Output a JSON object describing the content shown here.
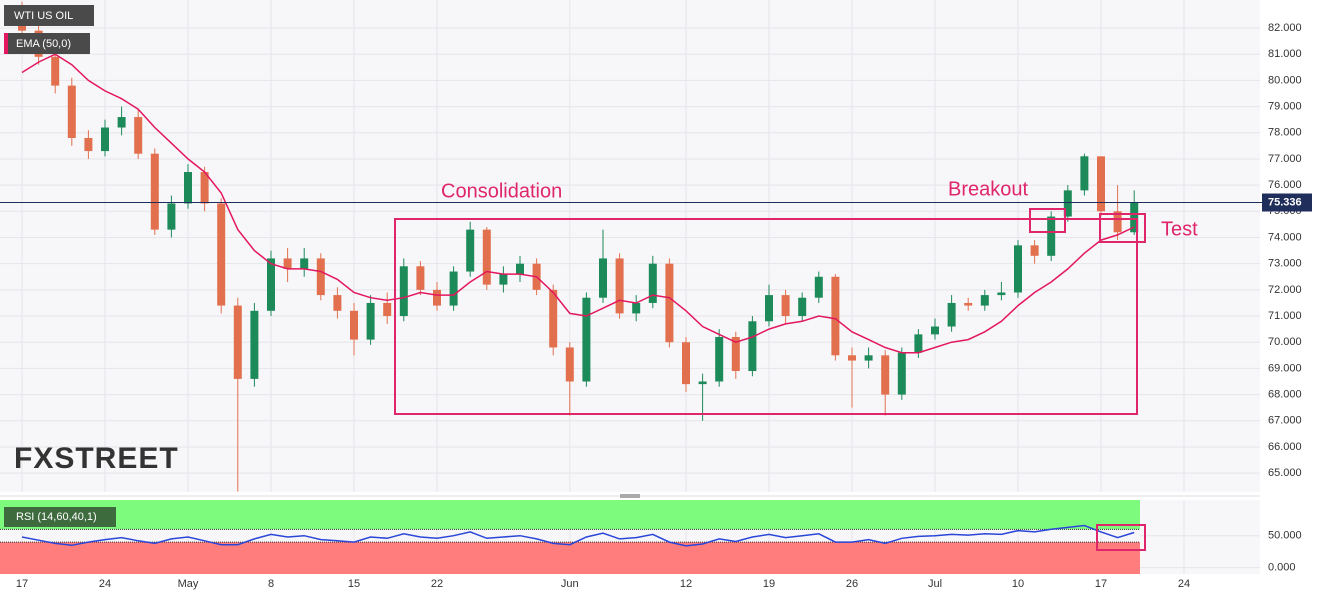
{
  "chart_data": [
    {
      "type": "candlestick",
      "title": "WTI US OIL",
      "up_color": "#1d8a5a",
      "down_color": "#e2704f",
      "categories": [
        "17",
        null,
        null,
        null,
        null,
        "24",
        null,
        null,
        null,
        null,
        "May",
        null,
        null,
        null,
        null,
        "8",
        null,
        null,
        null,
        null,
        "15",
        null,
        null,
        null,
        null,
        "22",
        null,
        null,
        null,
        null,
        null,
        null,
        null,
        "Jun",
        null,
        null,
        null,
        null,
        null,
        null,
        "12",
        null,
        null,
        null,
        null,
        "19",
        null,
        null,
        null,
        null,
        "26",
        null,
        null,
        null,
        null,
        "Jul",
        null,
        null,
        null,
        null,
        "10",
        null,
        null,
        null,
        null,
        "17",
        null,
        null,
        null,
        null,
        "24",
        null,
        null,
        null,
        null,
        null,
        null
      ],
      "open": [
        82.6,
        81.9,
        80.9,
        79.8,
        77.8,
        77.3,
        78.2,
        78.6,
        77.2,
        74.3,
        75.3,
        76.5,
        75.3,
        71.4,
        68.6,
        71.2,
        73.2,
        72.8,
        73.2,
        71.8,
        71.2,
        70.1,
        71.5,
        71.0,
        72.9,
        72.0,
        71.4,
        72.7,
        74.3,
        72.2,
        72.6,
        73.0,
        72.0,
        69.8,
        68.5,
        71.7,
        73.2,
        71.1,
        71.5,
        73.0,
        70.0,
        68.4,
        68.5,
        70.2,
        68.9,
        70.8,
        71.8,
        71.0,
        71.7,
        72.5,
        69.5,
        69.3,
        69.5,
        68.0,
        69.6,
        70.3,
        70.6,
        71.5,
        71.4,
        71.8,
        71.9,
        73.7,
        73.3,
        74.8,
        75.8,
        77.1,
        75.0,
        74.2,
        null,
        null,
        null,
        null,
        null,
        null,
        null,
        null,
        null
      ],
      "high": [
        83.0,
        82.2,
        81.3,
        80.1,
        78.1,
        78.5,
        79.0,
        78.9,
        77.4,
        75.6,
        76.8,
        76.7,
        75.5,
        71.7,
        71.5,
        73.5,
        73.6,
        73.6,
        73.4,
        72.1,
        71.5,
        71.8,
        71.9,
        73.2,
        73.1,
        72.3,
        72.9,
        74.6,
        74.4,
        72.9,
        73.3,
        73.2,
        72.2,
        70.0,
        71.9,
        74.3,
        73.4,
        71.8,
        73.3,
        73.2,
        70.2,
        68.8,
        70.5,
        70.4,
        71.0,
        72.2,
        72.0,
        71.9,
        72.7,
        72.6,
        69.8,
        69.8,
        69.7,
        69.8,
        70.5,
        70.9,
        71.8,
        71.7,
        72.0,
        72.3,
        73.9,
        73.9,
        75.0,
        76.0,
        77.2,
        77.1,
        76.0,
        75.8,
        null,
        null,
        null,
        null,
        null,
        null,
        null,
        null,
        null
      ],
      "low": [
        81.5,
        80.6,
        79.5,
        77.5,
        77.0,
        77.1,
        77.9,
        77.0,
        74.1,
        74.0,
        75.1,
        75.0,
        71.1,
        64.3,
        68.3,
        71.0,
        72.3,
        72.5,
        71.6,
        70.9,
        69.5,
        69.9,
        70.7,
        70.8,
        71.8,
        71.2,
        71.2,
        72.5,
        72.0,
        71.9,
        72.3,
        71.8,
        69.5,
        67.2,
        68.3,
        71.5,
        70.9,
        70.8,
        71.3,
        69.8,
        68.1,
        67.0,
        68.3,
        68.6,
        68.7,
        70.6,
        70.7,
        70.8,
        71.5,
        69.3,
        67.5,
        69.0,
        67.2,
        67.8,
        69.4,
        70.1,
        70.4,
        71.2,
        71.2,
        71.6,
        71.7,
        73.0,
        73.1,
        74.6,
        75.6,
        74.8,
        73.9,
        74.1,
        null,
        null,
        null,
        null,
        null,
        null,
        null,
        null,
        null
      ],
      "close": [
        81.9,
        80.9,
        79.8,
        77.8,
        77.3,
        78.2,
        78.6,
        77.2,
        74.3,
        75.3,
        76.5,
        75.3,
        71.4,
        68.6,
        71.2,
        73.2,
        72.8,
        73.2,
        71.8,
        71.2,
        70.1,
        71.5,
        71.0,
        72.9,
        72.0,
        71.4,
        72.7,
        74.3,
        72.2,
        72.6,
        73.0,
        72.0,
        69.8,
        68.5,
        71.7,
        73.2,
        71.1,
        71.5,
        73.0,
        70.0,
        68.4,
        68.5,
        70.2,
        68.9,
        70.8,
        71.8,
        71.0,
        71.7,
        72.5,
        69.5,
        69.3,
        69.5,
        68.0,
        69.6,
        70.3,
        70.6,
        71.5,
        71.4,
        71.8,
        71.9,
        73.7,
        73.3,
        74.8,
        75.8,
        77.1,
        75.0,
        74.2,
        75.34,
        null,
        null,
        null,
        null,
        null,
        null,
        null,
        null,
        null
      ],
      "ema": {
        "name": "EMA (50,0)",
        "color": "#e3175f",
        "values": [
          80.3,
          80.7,
          81.0,
          80.6,
          80.0,
          79.6,
          79.3,
          78.9,
          78.2,
          77.6,
          77.0,
          76.5,
          75.7,
          74.3,
          73.5,
          73.0,
          72.8,
          72.8,
          72.7,
          72.4,
          71.9,
          71.7,
          71.6,
          71.7,
          71.9,
          71.8,
          71.8,
          72.3,
          72.7,
          72.6,
          72.6,
          72.5,
          71.9,
          71.1,
          71.0,
          71.3,
          71.6,
          71.5,
          71.8,
          71.7,
          71.2,
          70.6,
          70.3,
          70.0,
          70.2,
          70.5,
          70.7,
          70.8,
          71.0,
          70.9,
          70.4,
          70.1,
          69.8,
          69.6,
          69.6,
          69.8,
          70.0,
          70.1,
          70.4,
          70.8,
          71.4,
          71.9,
          72.3,
          72.8,
          73.4,
          73.9,
          74.1,
          74.4,
          null,
          null,
          null,
          null,
          null,
          null,
          null,
          null,
          null
        ]
      },
      "last_price": {
        "value": 75.336,
        "label": "75.336"
      },
      "annotations": [
        "Consolidation",
        "Breakout",
        "Test"
      ],
      "logo": "FXSTREET",
      "ylim": [
        64.28,
        83.07
      ],
      "yticks": [
        {
          "value": 65,
          "label": "65.000"
        },
        {
          "value": 66,
          "label": "66.000"
        },
        {
          "value": 67,
          "label": "67.000"
        },
        {
          "value": 68,
          "label": "68.000"
        },
        {
          "value": 69,
          "label": "69.000"
        },
        {
          "value": 70,
          "label": "70.000"
        },
        {
          "value": 71,
          "label": "71.000"
        },
        {
          "value": 72,
          "label": "72.000"
        },
        {
          "value": 73,
          "label": "73.000"
        },
        {
          "value": 74,
          "label": "74.000"
        },
        {
          "value": 75,
          "label": "75.000"
        },
        {
          "value": 76,
          "label": "76.000"
        },
        {
          "value": 77,
          "label": "77.000"
        },
        {
          "value": 78,
          "label": "78.000"
        },
        {
          "value": 79,
          "label": "79.000"
        },
        {
          "value": 80,
          "label": "80.000"
        },
        {
          "value": 81,
          "label": "81.000"
        },
        {
          "value": 82,
          "label": "82.000"
        }
      ],
      "grid": true
    },
    {
      "type": "line",
      "title": "RSI (14,60,40,1)",
      "color": "#2946d8",
      "overbought": 60,
      "oversold": 40,
      "overbought_color": "#7dfb7d",
      "oversold_color": "#ff7d7d",
      "values": [
        48,
        43,
        38,
        35,
        40,
        44,
        47,
        42,
        38,
        45,
        48,
        42,
        36,
        36,
        45,
        52,
        48,
        50,
        44,
        42,
        40,
        48,
        46,
        53,
        48,
        46,
        50,
        56,
        46,
        48,
        50,
        45,
        38,
        36,
        48,
        54,
        45,
        47,
        52,
        40,
        34,
        37,
        45,
        41,
        48,
        52,
        47,
        50,
        53,
        40,
        40,
        44,
        38,
        46,
        49,
        50,
        52,
        51,
        53,
        52,
        58,
        56,
        60,
        63,
        66,
        56,
        47,
        55,
        null,
        null,
        null,
        null,
        null,
        null,
        null,
        null,
        null
      ],
      "ylim": [
        -10,
        106
      ],
      "yticks": [
        {
          "value": 0,
          "label": "0.000"
        },
        {
          "value": 50,
          "label": "50.000"
        }
      ]
    }
  ]
}
